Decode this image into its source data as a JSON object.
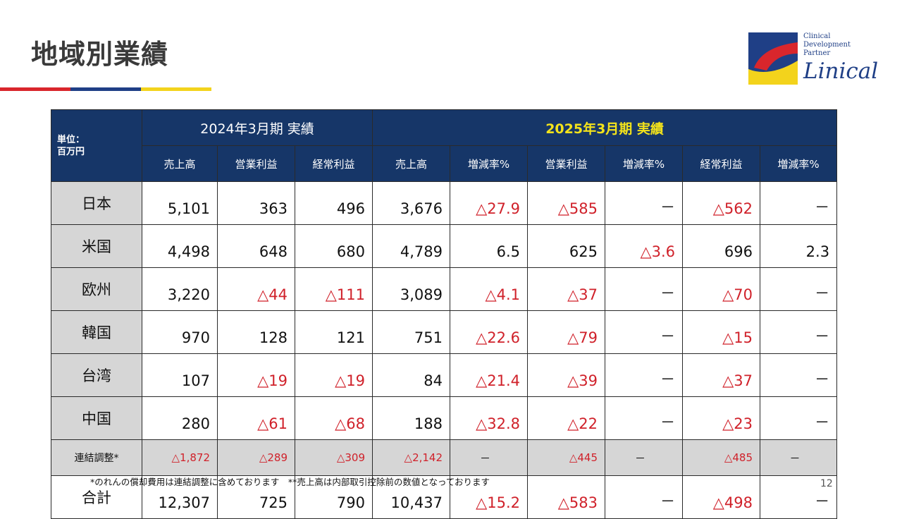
{
  "title": "地域別業績",
  "logo": {
    "lines": [
      "Clinical",
      "Development",
      "Partner"
    ],
    "brand": "Linical",
    "colors": {
      "red": "#d9262c",
      "blue": "#1f3f86",
      "yellow": "#f3d31c"
    }
  },
  "table": {
    "unit_line1": "単位：",
    "unit_line2": "百万円",
    "group_2024": "2024年3月期 実績",
    "group_2025": "2025年3月期 実績",
    "cols_2024": [
      "売上高",
      "営業利益",
      "経常利益"
    ],
    "cols_2025": [
      "売上高",
      "増減率%",
      "営業利益",
      "増減率%",
      "経常利益",
      "増減率%"
    ],
    "rows": [
      {
        "region": "日本",
        "cells": [
          "5,101",
          "363",
          "496",
          "3,676",
          "△27.9",
          "△585",
          "－",
          "△562",
          "－"
        ]
      },
      {
        "region": "米国",
        "cells": [
          "4,498",
          "648",
          "680",
          "4,789",
          "6.5",
          "625",
          "△3.6",
          "696",
          "2.3"
        ]
      },
      {
        "region": "欧州",
        "cells": [
          "3,220",
          "△44",
          "△111",
          "3,089",
          "△4.1",
          "△37",
          "－",
          "△70",
          "－"
        ]
      },
      {
        "region": "韓国",
        "cells": [
          "970",
          "128",
          "121",
          "751",
          "△22.6",
          "△79",
          "－",
          "△15",
          "－"
        ]
      },
      {
        "region": "台湾",
        "cells": [
          "107",
          "△19",
          "△19",
          "84",
          "△21.4",
          "△39",
          "－",
          "△37",
          "－"
        ]
      },
      {
        "region": "中国",
        "cells": [
          "280",
          "△61",
          "△68",
          "188",
          "△32.8",
          "△22",
          "－",
          "△23",
          "－"
        ]
      },
      {
        "region": "連結調整*",
        "cells": [
          "△1,872",
          "△289",
          "△309",
          "△2,142",
          "－",
          "△445",
          "－",
          "△485",
          "－"
        ]
      },
      {
        "region": "合計",
        "cells": [
          "12,307",
          "725",
          "790",
          "10,437",
          "△15.2",
          "△583",
          "－",
          "△498",
          "－"
        ]
      }
    ]
  },
  "footnote": "*のれんの償却費用は連結調整に含めております　**売上高は内部取引控除前の数値となっております",
  "page_number": "12"
}
